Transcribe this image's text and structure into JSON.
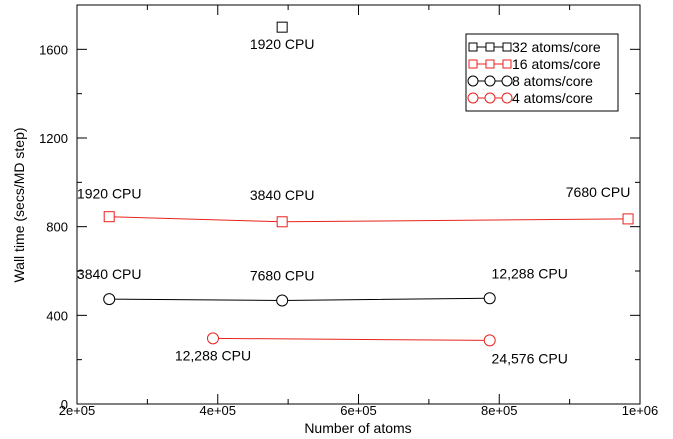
{
  "chart_data": {
    "type": "scatter",
    "xlabel": "Number of atoms",
    "ylabel": "Wall time (secs/MD step)",
    "xlim": [
      200000,
      1000000
    ],
    "ylim": [
      0,
      1800
    ],
    "x_ticks": [
      "2e+05",
      "4e+05",
      "6e+05",
      "8e+05",
      "1e+06"
    ],
    "x_tick_values": [
      200000,
      400000,
      600000,
      800000,
      1000000
    ],
    "y_ticks": [
      "0",
      "400",
      "800",
      "1200",
      "1600"
    ],
    "y_tick_values": [
      0,
      400,
      800,
      1200,
      1600
    ],
    "legend_position": "top-right",
    "series": [
      {
        "name": "32 atoms/core",
        "color": "#000000",
        "marker": "square",
        "points": [
          {
            "x": 491520,
            "y": 1700,
            "label": "1920 CPU"
          }
        ]
      },
      {
        "name": "16 atoms/core",
        "color": "#e8231c",
        "marker": "square",
        "points": [
          {
            "x": 245760,
            "y": 845,
            "label": "1920 CPU"
          },
          {
            "x": 491520,
            "y": 822,
            "label": "3840 CPU"
          },
          {
            "x": 983040,
            "y": 835,
            "label": "7680 CPU"
          }
        ]
      },
      {
        "name": "8 atoms/core",
        "color": "#000000",
        "marker": "circle",
        "points": [
          {
            "x": 245760,
            "y": 473,
            "label": "3840 CPU"
          },
          {
            "x": 491520,
            "y": 467,
            "label": "7680 CPU"
          },
          {
            "x": 786432,
            "y": 477,
            "label": "12,288 CPU"
          }
        ]
      },
      {
        "name": "4 atoms/core",
        "color": "#e8231c",
        "marker": "circle",
        "points": [
          {
            "x": 393216,
            "y": 296,
            "label": "12,288 CPU"
          },
          {
            "x": 786432,
            "y": 287,
            "label": "24,576 CPU"
          }
        ]
      }
    ]
  }
}
